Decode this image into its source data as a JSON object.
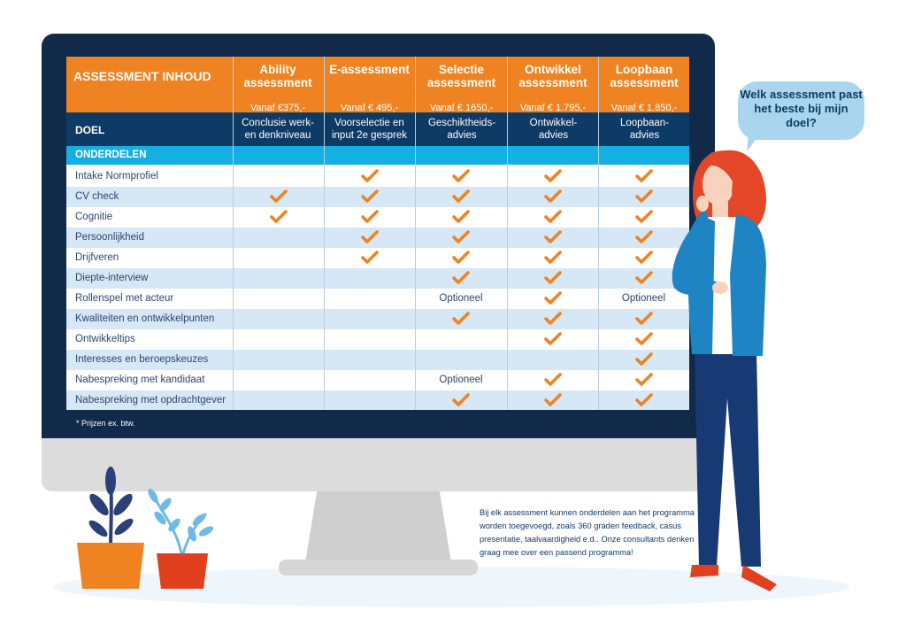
{
  "table": {
    "header_title": "ASSESSMENT INHOUD",
    "columns": [
      {
        "name": "Ability assessment",
        "price": "Vanaf €375,-",
        "doel": "Conclusie werk- en denkniveau"
      },
      {
        "name": "E-assessment",
        "price": "Vanaf € 495,-",
        "doel": "Voorselectie en input 2e gesprek"
      },
      {
        "name": "Selectie assessment",
        "price": "Vanaf € 1650,-",
        "doel": "Geschiktheids-advies"
      },
      {
        "name": "Ontwikkel assessment",
        "price": "Vanaf € 1.795,-",
        "doel": "Ontwikkel-advies"
      },
      {
        "name": "Loopbaan assessment",
        "price": "Vanaf € 1.850,-",
        "doel": "Loopbaan-advies"
      }
    ],
    "doel_label": "DOEL",
    "section_label": "ONDERDELEN",
    "optional_label": "Optioneel",
    "check_color": "#f08321",
    "rows": [
      {
        "label": "Intake Normprofiel",
        "cells": [
          "",
          "check",
          "check",
          "check",
          "check"
        ]
      },
      {
        "label": "CV check",
        "cells": [
          "check",
          "check",
          "check",
          "check",
          "check"
        ]
      },
      {
        "label": "Cognitie",
        "cells": [
          "check",
          "check",
          "check",
          "check",
          "check"
        ]
      },
      {
        "label": "Persoonlijkheid",
        "cells": [
          "",
          "check",
          "check",
          "check",
          "check"
        ]
      },
      {
        "label": "Drijfveren",
        "cells": [
          "",
          "check",
          "check",
          "check",
          "check"
        ]
      },
      {
        "label": "Diepte-interview",
        "cells": [
          "",
          "",
          "check",
          "check",
          "check"
        ]
      },
      {
        "label": "Rollenspel met acteur",
        "cells": [
          "",
          "",
          "optional",
          "check",
          "optional"
        ]
      },
      {
        "label": "Kwaliteiten en ontwikkelpunten",
        "cells": [
          "",
          "",
          "check",
          "check",
          "check"
        ]
      },
      {
        "label": "Ontwikkeltips",
        "cells": [
          "",
          "",
          "",
          "check",
          "check"
        ]
      },
      {
        "label": "Interesses en beroepskeuzes",
        "cells": [
          "",
          "",
          "",
          "",
          "check"
        ]
      },
      {
        "label": "Nabespreking met kandidaat",
        "cells": [
          "",
          "",
          "optional",
          "check",
          "check"
        ]
      },
      {
        "label": "Nabespreking met opdrachtgever",
        "cells": [
          "",
          "",
          "check",
          "check",
          "check"
        ]
      }
    ]
  },
  "footnote": "* Prijzen ex. btw.",
  "speech_bubble": "Welk assessment past het beste bij mijn doel?",
  "info_text": "Bij elk assessment kunnen onderdelen aan het programma worden toegevoegd, zoals 360 graden feedback, casus presentatie, taalvaardigheid e.d.. Onze consultants denken graag mee over een passend programma!",
  "colors": {
    "header_orange": "#f08321",
    "doel_navy": "#0e3a66",
    "section_cyan": "#15b0e2",
    "row_alt_blue": "#d6e7f5",
    "monitor_frame": "#112a4a"
  },
  "icons": [
    "check-icon",
    "plant-icon",
    "woman-illustration"
  ]
}
